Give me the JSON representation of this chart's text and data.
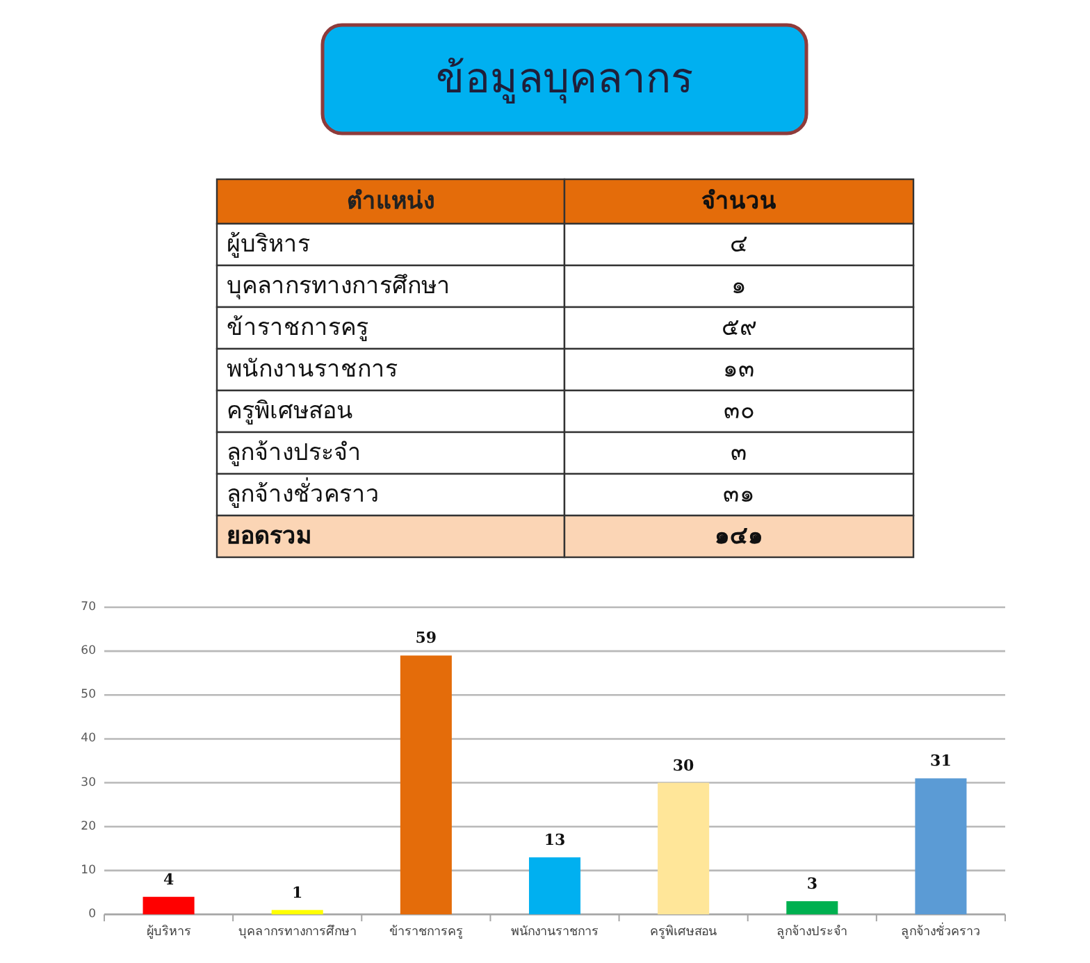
{
  "chart_data": [
    {
      "type": "other",
      "title": "ข้อมูลบุคลากร",
      "annotations": [
        "ตำแหน่ง",
        "จำนวน",
        "ผู้บริหาร",
        "๔",
        "บุคลากรทางการศึกษา",
        "๑",
        "ข้าราชการครู",
        "๕๙",
        "พนักงานราชการ",
        "๑๓",
        "ครูพิเศษสอน",
        "๓๐",
        "ลูกจ้างประจำ",
        "๓",
        "ลูกจ้างชั่วคราว",
        "๓๑",
        "ยอดรวม",
        "๑๔๑"
      ]
    },
    {
      "type": "bar",
      "categories": [
        "ผู้บริหาร",
        "บุคลากรทางการศึกษา",
        "ข้าราชการครู",
        "พนักงานราชการ",
        "ครูพิเศษสอน",
        "ลูกจ้างประจำ",
        "ลูกจ้างชั่วคราว"
      ],
      "values": [
        4,
        1,
        59,
        13,
        30,
        3,
        31
      ],
      "colors": [
        "#ff0000",
        "#ffff00",
        "#e46c0a",
        "#00b0f0",
        "#ffe699",
        "#00b050",
        "#5b9bd5"
      ],
      "ylim": [
        0,
        70
      ],
      "yticks": [
        0,
        10,
        20,
        30,
        40,
        50,
        60,
        70
      ],
      "grid": "y",
      "data_labels": true
    }
  ]
}
